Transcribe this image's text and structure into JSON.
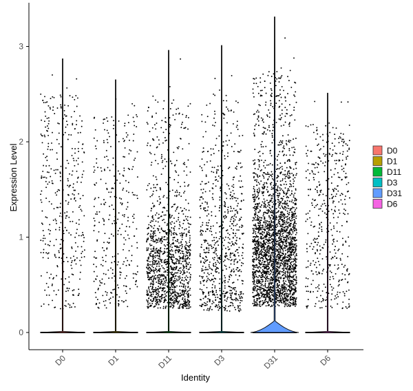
{
  "chart_data": {
    "type": "violin",
    "xlabel": "Identity",
    "ylabel": "Expression Level",
    "ylim": [
      -0.18,
      3.38
    ],
    "y_ticks": [
      0,
      1,
      2,
      3
    ],
    "categories": [
      "D0",
      "D1",
      "D11",
      "D3",
      "D31",
      "D6"
    ],
    "series": [
      {
        "name": "D0",
        "color": "#F8766D",
        "max": 2.87,
        "nonzero_points": 380,
        "nonzero_range": [
          0.25,
          2.5
        ]
      },
      {
        "name": "D1",
        "color": "#B79F00",
        "max": 2.65,
        "nonzero_points": 320,
        "nonzero_range": [
          0.25,
          2.3
        ]
      },
      {
        "name": "D11",
        "color": "#00BA38",
        "max": 2.96,
        "nonzero_points": 1300,
        "nonzero_range": [
          0.25,
          2.45
        ]
      },
      {
        "name": "D3",
        "color": "#00BFC4",
        "max": 3.01,
        "nonzero_points": 750,
        "nonzero_range": [
          0.22,
          2.5
        ]
      },
      {
        "name": "D31",
        "color": "#619CFF",
        "max": 3.31,
        "nonzero_points": 2600,
        "nonzero_range": [
          0.27,
          2.75
        ]
      },
      {
        "name": "D6",
        "color": "#F564E3",
        "max": 2.51,
        "nonzero_points": 450,
        "nonzero_range": [
          0.25,
          2.2
        ]
      }
    ],
    "legend": {
      "position": "right",
      "entries": [
        "D0",
        "D1",
        "D11",
        "D3",
        "D31",
        "D6"
      ]
    },
    "grid": false,
    "points": "jittered"
  }
}
